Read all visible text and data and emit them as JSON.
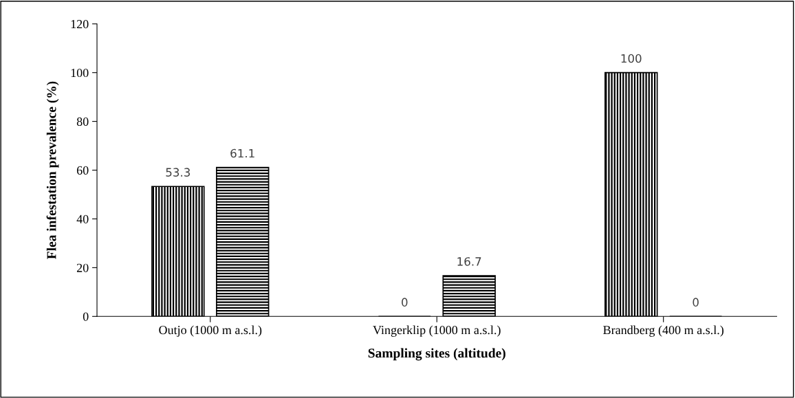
{
  "chart_data": {
    "type": "bar",
    "xlabel": "Sampling sites (altitude)",
    "ylabel": "Flea infestation prevalence (%)",
    "categories": [
      "Outjo (1000 m a.s.l.)",
      "Vingerklip (1000 m a.s.l.)",
      "Brandberg (400 m a.s.l.)"
    ],
    "series": [
      {
        "color": "#000000",
        "values": [
          53.3,
          0,
          100
        ]
      },
      {
        "color": "#000000",
        "values": [
          61.1,
          16.7,
          0
        ]
      }
    ],
    "ylim": [
      0,
      120
    ],
    "yticks": [
      0,
      20,
      40,
      60,
      80,
      100,
      120
    ],
    "data_labels": true,
    "grid": false
  }
}
